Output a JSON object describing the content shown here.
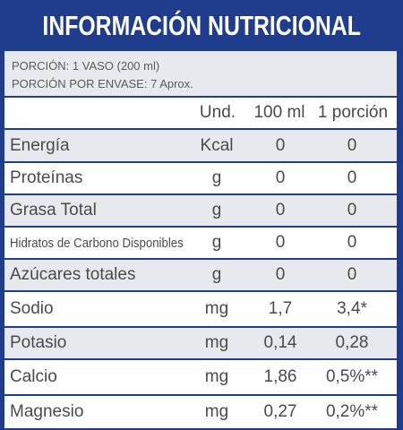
{
  "title": "INFORMACIÓN NUTRICIONAL",
  "portion": {
    "line1": "PORCIÓN: 1 VASO (200 ml)",
    "line2": "PORCIÓN POR ENVASE: 7 Aprox."
  },
  "columns": {
    "unit": "Und.",
    "per100": "100 ml",
    "perPortion": "1 porción"
  },
  "rows": [
    {
      "name": "Energía",
      "unit": "Kcal",
      "per100": "0",
      "perPortion": "0"
    },
    {
      "name": "Proteínas",
      "unit": "g",
      "per100": "0",
      "perPortion": "0"
    },
    {
      "name": "Grasa Total",
      "unit": "g",
      "per100": "0",
      "perPortion": "0"
    },
    {
      "name": "Hidratos de Carbono Disponibles",
      "unit": "g",
      "per100": "0",
      "perPortion": "0"
    },
    {
      "name": "Azúcares totales",
      "unit": "g",
      "per100": "0",
      "perPortion": "0"
    },
    {
      "name": "Sodio",
      "unit": "mg",
      "per100": "1,7",
      "perPortion": "3,4*"
    },
    {
      "name": "Potasio",
      "unit": "mg",
      "per100": "0,14",
      "perPortion": "0,28"
    },
    {
      "name": "Calcio",
      "unit": "mg",
      "per100": "1,86",
      "perPortion": "0,5%**"
    },
    {
      "name": "Magnesio",
      "unit": "mg",
      "per100": "0,27",
      "perPortion": "0,2%**"
    }
  ],
  "colors": {
    "border": "#1f3d8c",
    "shade": "#e8e9ee",
    "text": "#4a4a4a"
  }
}
